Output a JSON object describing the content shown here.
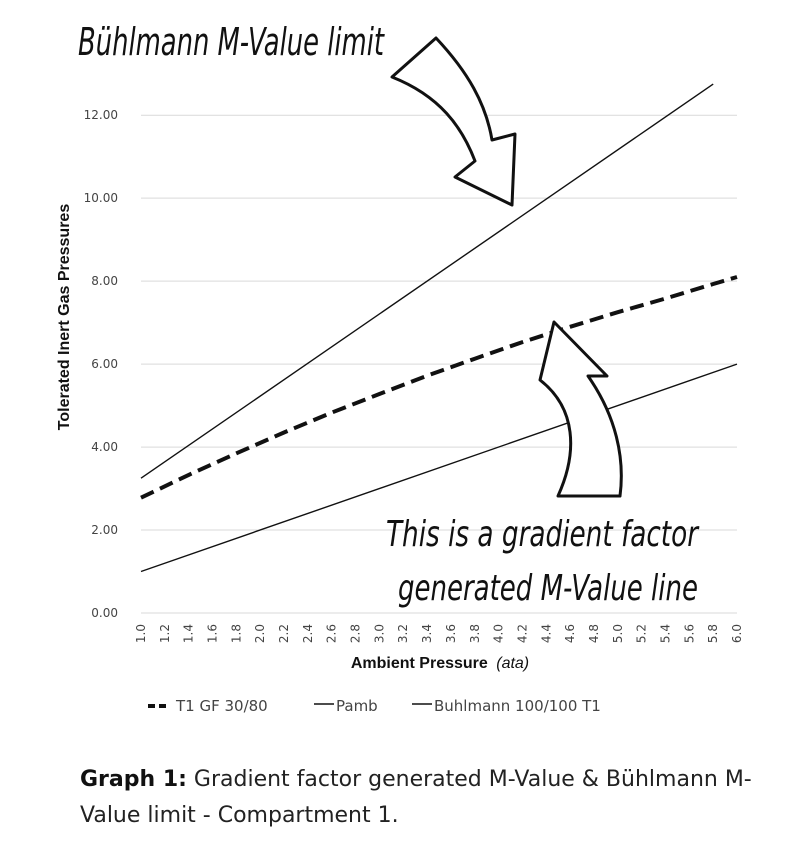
{
  "chart_data": {
    "type": "line",
    "xlabel_main": "Ambient Pressure",
    "xlabel_unit": "(ata)",
    "ylabel": "Tolerated Inert Gas Pressures",
    "xlim": [
      1.0,
      6.0
    ],
    "ylim": [
      0,
      12.8
    ],
    "x_ticks": [
      "1.0",
      "1.2",
      "1.4",
      "1.6",
      "1.8",
      "2.0",
      "2.2",
      "2.4",
      "2.6",
      "2.8",
      "3.0",
      "3.2",
      "3.4",
      "3.6",
      "3.8",
      "4.0",
      "4.2",
      "4.4",
      "4.6",
      "4.8",
      "5.0",
      "5.2",
      "5.4",
      "5.6",
      "5.8",
      "6.0"
    ],
    "y_ticks": [
      "0.00",
      "2.00",
      "4.00",
      "6.00",
      "8.00",
      "10.00",
      "12.00"
    ],
    "grid": "horizontal",
    "legend_position": "bottom",
    "series": [
      {
        "name": "T1 GF 30/80",
        "style": "dashed-thick",
        "x": [
          1.0,
          1.4,
          1.8,
          2.2,
          2.6,
          3.0,
          3.4,
          3.8,
          4.2,
          4.6,
          5.0,
          5.4,
          5.8,
          6.0
        ],
        "y": [
          2.78,
          3.33,
          3.85,
          4.35,
          4.83,
          5.28,
          5.72,
          6.13,
          6.53,
          6.9,
          7.25,
          7.58,
          7.93,
          8.1
        ]
      },
      {
        "name": "Pamb",
        "style": "solid-thin",
        "x": [
          1.0,
          6.0
        ],
        "y": [
          1.0,
          6.0
        ]
      },
      {
        "name": "Buhlmann 100/100 T1",
        "style": "solid-thin",
        "x": [
          1.0,
          5.8
        ],
        "y": [
          3.25,
          12.75
        ]
      }
    ]
  },
  "annotations": {
    "top": "Bühlmann M-Value limit",
    "bottom_line1": "This is a gradient factor",
    "bottom_line2": "generated M-Value line"
  },
  "caption": {
    "label": "Graph 1:",
    "text": " Gradient factor generated M-Value & Bühlmann M-Value limit - Compartment 1."
  },
  "colors": {
    "line": "#111111",
    "grid": "#d9d9d9",
    "text": "#444444"
  }
}
